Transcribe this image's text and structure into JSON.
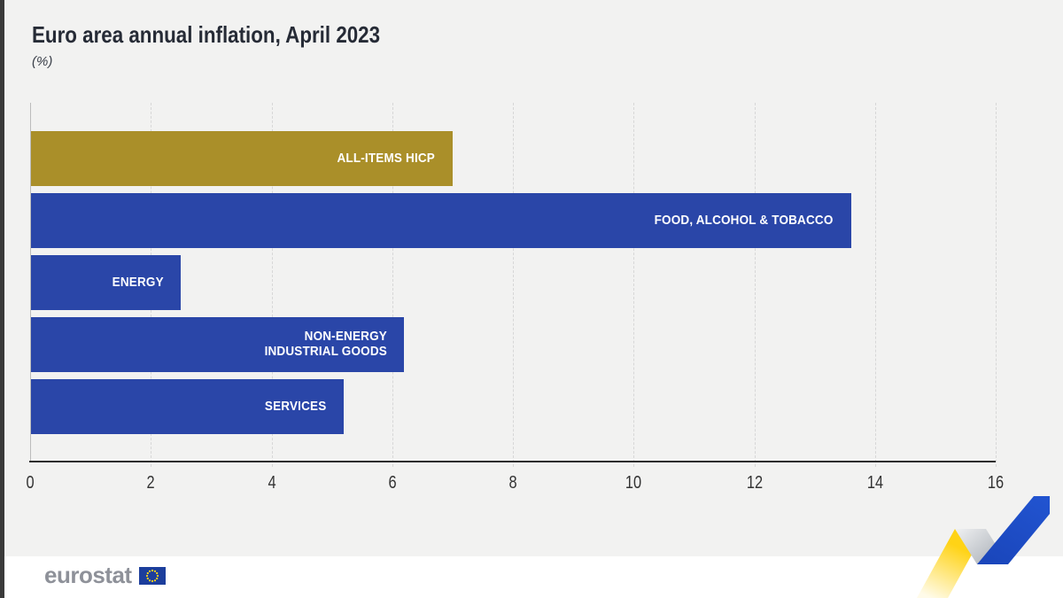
{
  "page": {
    "background": "#f2f2f1",
    "footer_background": "#ffffff",
    "left_edge_color": "#3a3a3a"
  },
  "header": {
    "title": "Euro area annual inflation, April 2023",
    "subtitle": "(%)"
  },
  "chart_data": {
    "type": "bar",
    "orientation": "horizontal",
    "title": "Euro area annual inflation, April 2023",
    "subtitle": "(%)",
    "xlabel": "",
    "ylabel": "",
    "xlim": [
      0,
      16
    ],
    "x_ticks": [
      0,
      2,
      4,
      6,
      8,
      10,
      12,
      14,
      16
    ],
    "grid": "vertical-dashed",
    "categories": [
      "ALL-ITEMS HICP",
      "FOOD, ALCOHOL & TOBACCO",
      "ENERGY",
      "NON-ENERGY INDUSTRIAL GOODS",
      "SERVICES"
    ],
    "values": [
      7.0,
      13.6,
      2.5,
      6.2,
      5.2
    ],
    "label_lines": [
      [
        "ALL-ITEMS HICP"
      ],
      [
        "FOOD, ALCOHOL & TOBACCO"
      ],
      [
        "ENERGY"
      ],
      [
        "NON-ENERGY",
        "INDUSTRIAL GOODS"
      ],
      [
        "SERVICES"
      ]
    ],
    "bar_colors": [
      "#aa8f29",
      "#2a46a8",
      "#2a46a8",
      "#2a46a8",
      "#2a46a8"
    ],
    "bar_label_color": "#ffffff",
    "axis_line_color": "#2d2d2d",
    "gridline_color": "#d7d7d7",
    "tick_label_color": "#333333"
  },
  "footer": {
    "logo_text": "eurostat",
    "flag_color": "#1c3e9c",
    "star_color": "#ffd617"
  },
  "decoration": {
    "ribbon_yellow": "#ffd316",
    "ribbon_yellow_fade": "#fffbe9",
    "ribbon_gray_light": "#f0f1f2",
    "ribbon_gray_dark": "#a8aeb6",
    "ribbon_blue": "#2153cf",
    "ribbon_blue_dark": "#1a46bb"
  }
}
